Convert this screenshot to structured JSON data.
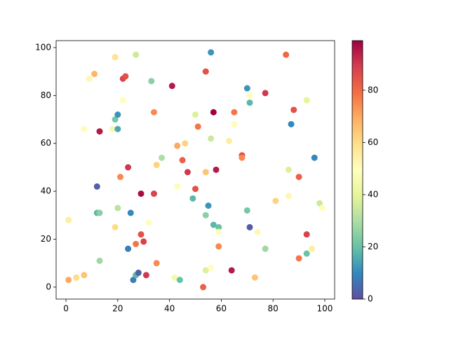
{
  "chart_data": {
    "type": "scatter",
    "x": [
      1,
      1,
      4,
      7,
      7,
      9,
      11,
      12,
      12,
      13,
      13,
      13,
      18,
      19,
      19,
      19,
      20,
      20,
      20,
      21,
      22,
      22,
      23,
      24,
      24,
      25,
      26,
      27,
      27,
      27,
      28,
      29,
      29,
      30,
      31,
      32,
      33,
      34,
      34,
      35,
      35,
      37,
      41,
      42,
      43,
      43,
      44,
      45,
      46,
      47,
      49,
      50,
      50,
      51,
      53,
      54,
      54,
      54,
      54,
      55,
      56,
      56,
      56,
      57,
      57,
      58,
      59,
      59,
      59,
      63,
      64,
      65,
      65,
      68,
      68,
      70,
      70,
      71,
      71,
      71,
      73,
      74,
      77,
      77,
      81,
      85,
      86,
      86,
      87,
      88,
      90,
      90,
      93,
      93,
      93,
      95,
      96,
      98,
      99
    ],
    "y": [
      3,
      28,
      4,
      5,
      66,
      87,
      89,
      42,
      31,
      31,
      65,
      11,
      66,
      96,
      70,
      25,
      72,
      66,
      33,
      46,
      87,
      78,
      88,
      50,
      16,
      31,
      3,
      97,
      5,
      18,
      6,
      39,
      22,
      19,
      5,
      27,
      86,
      73,
      39,
      51,
      10,
      54,
      84,
      4,
      42,
      59,
      3,
      53,
      60,
      48,
      37,
      72,
      41,
      67,
      0,
      90,
      48,
      30,
      7,
      34,
      98,
      62,
      8,
      73,
      26,
      49,
      25,
      23,
      17,
      61,
      7,
      73,
      68,
      55,
      54,
      83,
      32,
      80,
      77,
      25,
      4,
      23,
      81,
      16,
      36,
      97,
      49,
      38,
      68,
      74,
      46,
      12,
      78,
      22,
      14,
      16,
      54,
      35,
      33
    ],
    "c": [
      70,
      55,
      60,
      65,
      50,
      52,
      68,
      3,
      18,
      25,
      95,
      28,
      45,
      58,
      22,
      60,
      12,
      15,
      32,
      75,
      88,
      50,
      85,
      90,
      8,
      10,
      8,
      35,
      18,
      78,
      3,
      97,
      85,
      88,
      90,
      50,
      25,
      75,
      88,
      62,
      75,
      30,
      95,
      45,
      48,
      70,
      20,
      82,
      62,
      90,
      18,
      38,
      85,
      78,
      82,
      85,
      65,
      25,
      38,
      12,
      12,
      35,
      50,
      99,
      18,
      95,
      20,
      50,
      75,
      55,
      95,
      78,
      50,
      85,
      75,
      12,
      22,
      50,
      18,
      2,
      65,
      52,
      90,
      28,
      62,
      80,
      38,
      52,
      10,
      85,
      82,
      78,
      40,
      88,
      20,
      55,
      10,
      35,
      50
    ],
    "xlim": [
      -3.8,
      103.8
    ],
    "ylim": [
      -5,
      102.9
    ],
    "xticks": [
      0,
      20,
      40,
      60,
      80,
      100
    ],
    "yticks": [
      0,
      20,
      40,
      60,
      80,
      100
    ],
    "colorbar": {
      "clim": [
        0,
        99
      ],
      "ticks": [
        0,
        20,
        40,
        60,
        80
      ],
      "colormap": [
        "#5e4fa2",
        "#3288bd",
        "#66c2a5",
        "#abdda4",
        "#e6f598",
        "#ffffbf",
        "#fee08b",
        "#fdae61",
        "#f46d43",
        "#d53e4f",
        "#9e0142"
      ]
    }
  }
}
